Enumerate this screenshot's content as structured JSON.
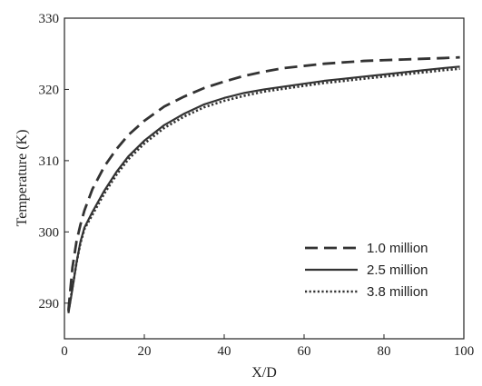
{
  "chart_data": {
    "type": "line",
    "title": "",
    "xlabel": "X/D",
    "ylabel": "Temperature (K)",
    "xlim": [
      0,
      100
    ],
    "ylim": [
      285,
      330
    ],
    "xticks": [
      0,
      20,
      40,
      60,
      80,
      100
    ],
    "yticks": [
      290,
      300,
      310,
      320,
      330
    ],
    "grid": false,
    "legend": "bottom-right",
    "series": [
      {
        "name": "1.0 million",
        "style": "dashed",
        "color": "#333333",
        "x": [
          1,
          2,
          3,
          4,
          5,
          7,
          10,
          13,
          16,
          20,
          25,
          30,
          35,
          40,
          45,
          50,
          55,
          60,
          65,
          70,
          75,
          80,
          85,
          90,
          95,
          99
        ],
        "y": [
          289,
          295,
          298.6,
          301,
          303,
          306,
          309.2,
          311.6,
          313.6,
          315.6,
          317.6,
          319,
          320.2,
          321.1,
          321.9,
          322.5,
          323,
          323.3,
          323.6,
          323.8,
          324,
          324.1,
          324.2,
          324.3,
          324.4,
          324.5
        ]
      },
      {
        "name": "2.5 million",
        "style": "solid",
        "color": "#333333",
        "x": [
          1,
          2,
          3,
          4,
          5,
          7,
          10,
          13,
          16,
          20,
          25,
          30,
          35,
          40,
          45,
          50,
          55,
          60,
          65,
          70,
          75,
          80,
          85,
          90,
          95,
          99
        ],
        "y": [
          288.6,
          292,
          295.6,
          298.6,
          300.6,
          302.8,
          305.8,
          308.4,
          310.6,
          312.8,
          315,
          316.6,
          317.9,
          318.8,
          319.5,
          320,
          320.4,
          320.8,
          321.2,
          321.5,
          321.8,
          322.1,
          322.4,
          322.7,
          323,
          323.2
        ]
      },
      {
        "name": "3.8 million",
        "style": "dotted",
        "color": "#333333",
        "x": [
          1,
          2,
          3,
          4,
          5,
          7,
          10,
          13,
          16,
          20,
          25,
          30,
          35,
          40,
          45,
          50,
          55,
          60,
          65,
          70,
          75,
          80,
          85,
          90,
          95,
          99
        ],
        "y": [
          288.8,
          292.2,
          295.6,
          298.4,
          300.4,
          302.4,
          305.4,
          308,
          310.2,
          312.4,
          314.6,
          316.2,
          317.5,
          318.4,
          319.1,
          319.7,
          320.1,
          320.5,
          320.9,
          321.2,
          321.5,
          321.8,
          322.1,
          322.4,
          322.7,
          322.9
        ]
      }
    ]
  }
}
